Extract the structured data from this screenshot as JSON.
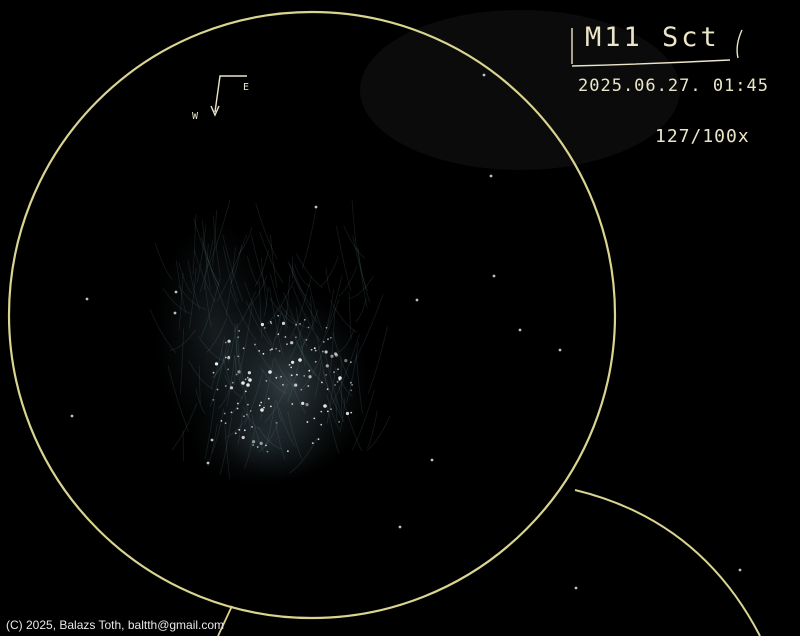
{
  "title": "M11 Sct",
  "date_line": "2025.06.27. 01:45",
  "scope_line": "127/100x",
  "compass": {
    "east": "E",
    "west": "W"
  },
  "credit": "(C) 2025, Balazs Toth, baltth@gmail.com",
  "colors": {
    "background": "#000000",
    "circle": "#d9d48f",
    "nebula": "#8fb3bf",
    "stars": "#ffffff"
  }
}
